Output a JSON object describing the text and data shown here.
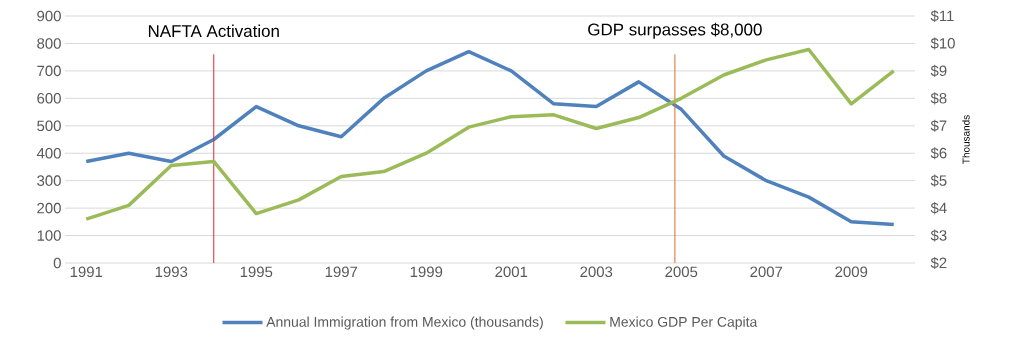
{
  "chart_data": {
    "type": "line",
    "x": [
      1991,
      1992,
      1993,
      1994,
      1995,
      1996,
      1997,
      1998,
      1999,
      2000,
      2001,
      2002,
      2003,
      2004,
      2005,
      2006,
      2007,
      2008,
      2009,
      2010
    ],
    "series": [
      {
        "name": "Annual Immigration from Mexico (thousands)",
        "color": "#4f81bd",
        "values": [
          370,
          400,
          370,
          450,
          570,
          500,
          460,
          600,
          700,
          770,
          700,
          580,
          570,
          660,
          560,
          390,
          300,
          240,
          150,
          140
        ]
      },
      {
        "name": "Mexico GDP Per Capita",
        "color": "#9bbb59",
        "axis": "y2",
        "values": [
          3.6,
          4.1,
          5.55,
          5.7,
          3.8,
          4.3,
          5.15,
          5.33,
          6.0,
          6.95,
          7.33,
          7.4,
          6.9,
          7.3,
          8.0,
          8.85,
          9.4,
          9.78,
          7.8,
          9.0
        ]
      }
    ],
    "xlim": [
      1990.5,
      2010.5
    ],
    "xticks": [
      1991,
      1993,
      1995,
      1997,
      1999,
      2001,
      2003,
      2005,
      2007,
      2009
    ],
    "ylim": [
      0,
      900
    ],
    "yticks": [
      0,
      100,
      200,
      300,
      400,
      500,
      600,
      700,
      800,
      900
    ],
    "y2lim": [
      2,
      11
    ],
    "y2ticks": [
      {
        "value": 2,
        "label": "$2"
      },
      {
        "value": 3,
        "label": "$3"
      },
      {
        "value": 4,
        "label": "$4"
      },
      {
        "value": 5,
        "label": "$5"
      },
      {
        "value": 6,
        "label": "$6"
      },
      {
        "value": 7,
        "label": "$7"
      },
      {
        "value": 8,
        "label": "$8"
      },
      {
        "value": 9,
        "label": "$9"
      },
      {
        "value": 10,
        "label": "$10"
      },
      {
        "value": 11,
        "label": "$11"
      }
    ],
    "y2label": "Thousands",
    "ref_lines": [
      {
        "axis": "x",
        "value": 1994,
        "label": "NAFTA Activation",
        "color": "#e0292b"
      },
      {
        "axis": "x",
        "value": 2004.85,
        "label": "GDP surpasses $8,000",
        "color": "#e06c2c"
      }
    ],
    "grid": "y",
    "legend": "bottom"
  }
}
